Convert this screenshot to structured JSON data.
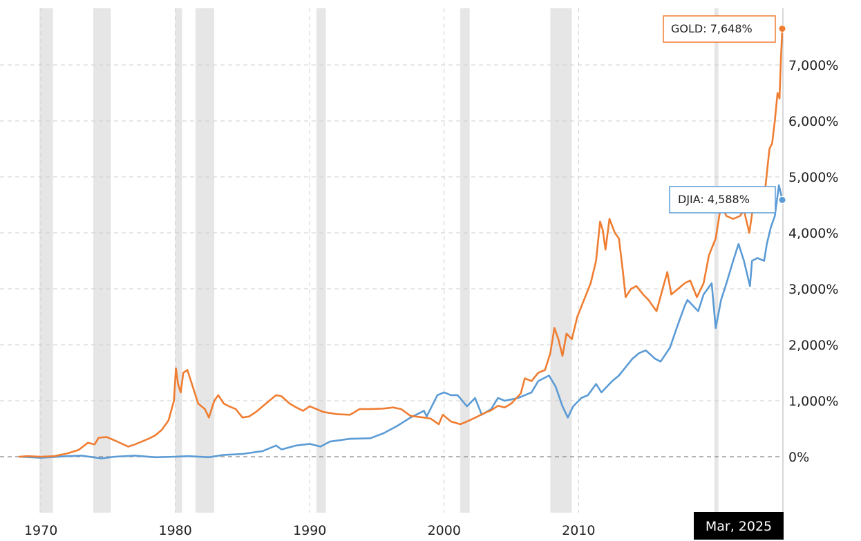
{
  "chart_data": {
    "type": "line",
    "title": "",
    "xlabel": "",
    "ylabel": "",
    "x_range": [
      1968.4,
      2025.2
    ],
    "y_range": [
      -1000,
      7900
    ],
    "x_ticks": [
      {
        "value": 1970,
        "label": "1970"
      },
      {
        "value": 1980,
        "label": "1980"
      },
      {
        "value": 1990,
        "label": "1990"
      },
      {
        "value": 2000,
        "label": "2000"
      },
      {
        "value": 2010,
        "label": "2010"
      }
    ],
    "y_ticks": [
      {
        "value": 0,
        "label": "0%"
      },
      {
        "value": 1000,
        "label": "1,000%"
      },
      {
        "value": 2000,
        "label": "2,000%"
      },
      {
        "value": 3000,
        "label": "3,000%"
      },
      {
        "value": 4000,
        "label": "4,000%"
      },
      {
        "value": 5000,
        "label": "5,000%"
      },
      {
        "value": 6000,
        "label": "6,000%"
      },
      {
        "value": 7000,
        "label": "7,000%"
      }
    ],
    "grid": true,
    "recession_bands": [
      [
        1969.9,
        1970.9
      ],
      [
        1973.9,
        1975.2
      ],
      [
        1980.0,
        1980.5
      ],
      [
        1981.5,
        1982.9
      ],
      [
        1990.5,
        1991.2
      ],
      [
        2001.2,
        2001.9
      ],
      [
        2007.9,
        2009.5
      ],
      [
        2020.1,
        2020.4
      ]
    ],
    "cursor_label": "Mar, 2025",
    "series": [
      {
        "name": "GOLD",
        "color": "#ef7d31",
        "end_label": "GOLD: 7,648%",
        "points": [
          [
            1968.4,
            0
          ],
          [
            1969.0,
            10
          ],
          [
            1970.0,
            0
          ],
          [
            1971.0,
            10
          ],
          [
            1972.0,
            60
          ],
          [
            1972.8,
            120
          ],
          [
            1973.5,
            250
          ],
          [
            1974.0,
            220
          ],
          [
            1974.3,
            340
          ],
          [
            1974.9,
            350
          ],
          [
            1975.5,
            290
          ],
          [
            1976.5,
            180
          ],
          [
            1977.0,
            220
          ],
          [
            1978.0,
            320
          ],
          [
            1978.5,
            380
          ],
          [
            1979.0,
            480
          ],
          [
            1979.5,
            650
          ],
          [
            1979.9,
            1000
          ],
          [
            1980.05,
            1580
          ],
          [
            1980.2,
            1300
          ],
          [
            1980.4,
            1150
          ],
          [
            1980.6,
            1500
          ],
          [
            1980.9,
            1550
          ],
          [
            1981.3,
            1250
          ],
          [
            1981.7,
            950
          ],
          [
            1982.2,
            850
          ],
          [
            1982.5,
            700
          ],
          [
            1982.9,
            1000
          ],
          [
            1983.2,
            1100
          ],
          [
            1983.6,
            950
          ],
          [
            1984.0,
            900
          ],
          [
            1984.5,
            850
          ],
          [
            1985.0,
            700
          ],
          [
            1985.5,
            720
          ],
          [
            1986.0,
            800
          ],
          [
            1986.5,
            900
          ],
          [
            1987.0,
            1000
          ],
          [
            1987.5,
            1100
          ],
          [
            1987.9,
            1080
          ],
          [
            1988.5,
            950
          ],
          [
            1989.0,
            880
          ],
          [
            1989.5,
            820
          ],
          [
            1990.0,
            900
          ],
          [
            1990.5,
            850
          ],
          [
            1991.0,
            800
          ],
          [
            1992.0,
            760
          ],
          [
            1993.0,
            750
          ],
          [
            1993.7,
            850
          ],
          [
            1994.5,
            850
          ],
          [
            1995.5,
            860
          ],
          [
            1996.2,
            880
          ],
          [
            1996.8,
            850
          ],
          [
            1997.5,
            730
          ],
          [
            1998.5,
            700
          ],
          [
            1999.0,
            680
          ],
          [
            1999.6,
            580
          ],
          [
            1999.9,
            750
          ],
          [
            2000.5,
            630
          ],
          [
            2001.2,
            580
          ],
          [
            2001.8,
            640
          ],
          [
            2002.5,
            720
          ],
          [
            2003.0,
            780
          ],
          [
            2003.5,
            830
          ],
          [
            2004.0,
            910
          ],
          [
            2004.5,
            880
          ],
          [
            2005.0,
            950
          ],
          [
            2005.7,
            1130
          ],
          [
            2006.0,
            1400
          ],
          [
            2006.5,
            1350
          ],
          [
            2007.0,
            1500
          ],
          [
            2007.5,
            1550
          ],
          [
            2007.9,
            1850
          ],
          [
            2008.2,
            2300
          ],
          [
            2008.5,
            2100
          ],
          [
            2008.8,
            1800
          ],
          [
            2009.1,
            2200
          ],
          [
            2009.5,
            2100
          ],
          [
            2009.9,
            2500
          ],
          [
            2010.4,
            2800
          ],
          [
            2010.9,
            3100
          ],
          [
            2011.3,
            3500
          ],
          [
            2011.6,
            4200
          ],
          [
            2011.8,
            4050
          ],
          [
            2012.0,
            3700
          ],
          [
            2012.3,
            4250
          ],
          [
            2012.7,
            4000
          ],
          [
            2013.0,
            3900
          ],
          [
            2013.3,
            3300
          ],
          [
            2013.5,
            2850
          ],
          [
            2013.9,
            3000
          ],
          [
            2014.3,
            3050
          ],
          [
            2014.8,
            2900
          ],
          [
            2015.2,
            2800
          ],
          [
            2015.8,
            2600
          ],
          [
            2016.2,
            2950
          ],
          [
            2016.6,
            3300
          ],
          [
            2016.9,
            2900
          ],
          [
            2017.4,
            3000
          ],
          [
            2017.9,
            3100
          ],
          [
            2018.3,
            3150
          ],
          [
            2018.8,
            2850
          ],
          [
            2019.3,
            3100
          ],
          [
            2019.7,
            3600
          ],
          [
            2020.2,
            3900
          ],
          [
            2020.6,
            4500
          ],
          [
            2021.0,
            4300
          ],
          [
            2021.5,
            4250
          ],
          [
            2022.0,
            4300
          ],
          [
            2022.3,
            4400
          ],
          [
            2022.7,
            4000
          ],
          [
            2023.0,
            4500
          ],
          [
            2023.4,
            4800
          ],
          [
            2023.8,
            4600
          ],
          [
            2024.2,
            5500
          ],
          [
            2024.4,
            5600
          ],
          [
            2024.6,
            6000
          ],
          [
            2024.8,
            6500
          ],
          [
            2024.95,
            6400
          ],
          [
            2025.05,
            7100
          ],
          [
            2025.15,
            7648
          ]
        ]
      },
      {
        "name": "DJIA",
        "color": "#5b9bd5",
        "end_label": "DJIA: 4,588%",
        "points": [
          [
            1968.4,
            0
          ],
          [
            1970.0,
            -20
          ],
          [
            1972.0,
            10
          ],
          [
            1973.0,
            20
          ],
          [
            1974.5,
            -30
          ],
          [
            1975.5,
            0
          ],
          [
            1977.0,
            20
          ],
          [
            1978.5,
            -10
          ],
          [
            1980.0,
            0
          ],
          [
            1981.0,
            10
          ],
          [
            1982.5,
            -10
          ],
          [
            1983.5,
            30
          ],
          [
            1985.0,
            50
          ],
          [
            1986.5,
            100
          ],
          [
            1987.5,
            200
          ],
          [
            1987.9,
            130
          ],
          [
            1989.0,
            200
          ],
          [
            1990.0,
            230
          ],
          [
            1990.8,
            180
          ],
          [
            1991.5,
            270
          ],
          [
            1993.0,
            320
          ],
          [
            1994.5,
            330
          ],
          [
            1995.5,
            420
          ],
          [
            1996.5,
            550
          ],
          [
            1997.5,
            700
          ],
          [
            1998.5,
            820
          ],
          [
            1998.7,
            720
          ],
          [
            1999.5,
            1100
          ],
          [
            2000.0,
            1150
          ],
          [
            2000.5,
            1100
          ],
          [
            2001.0,
            1100
          ],
          [
            2001.7,
            900
          ],
          [
            2002.3,
            1050
          ],
          [
            2002.8,
            750
          ],
          [
            2003.5,
            850
          ],
          [
            2004.0,
            1050
          ],
          [
            2004.5,
            1000
          ],
          [
            2005.5,
            1050
          ],
          [
            2006.5,
            1150
          ],
          [
            2007.0,
            1350
          ],
          [
            2007.8,
            1450
          ],
          [
            2008.3,
            1250
          ],
          [
            2008.8,
            900
          ],
          [
            2009.2,
            700
          ],
          [
            2009.6,
            900
          ],
          [
            2010.2,
            1050
          ],
          [
            2010.7,
            1100
          ],
          [
            2011.3,
            1300
          ],
          [
            2011.7,
            1150
          ],
          [
            2012.5,
            1350
          ],
          [
            2013.0,
            1450
          ],
          [
            2013.5,
            1600
          ],
          [
            2014.0,
            1750
          ],
          [
            2014.5,
            1850
          ],
          [
            2015.0,
            1900
          ],
          [
            2015.7,
            1750
          ],
          [
            2016.1,
            1700
          ],
          [
            2016.8,
            1950
          ],
          [
            2017.3,
            2300
          ],
          [
            2017.9,
            2700
          ],
          [
            2018.1,
            2800
          ],
          [
            2018.9,
            2600
          ],
          [
            2019.3,
            2900
          ],
          [
            2019.9,
            3100
          ],
          [
            2020.2,
            2300
          ],
          [
            2020.6,
            2800
          ],
          [
            2021.0,
            3100
          ],
          [
            2021.5,
            3500
          ],
          [
            2021.9,
            3800
          ],
          [
            2022.3,
            3500
          ],
          [
            2022.75,
            3050
          ],
          [
            2022.9,
            3500
          ],
          [
            2023.3,
            3550
          ],
          [
            2023.8,
            3500
          ],
          [
            2024.0,
            3800
          ],
          [
            2024.3,
            4100
          ],
          [
            2024.6,
            4300
          ],
          [
            2024.9,
            4850
          ],
          [
            2025.05,
            4700
          ],
          [
            2025.15,
            4588
          ]
        ]
      }
    ]
  }
}
